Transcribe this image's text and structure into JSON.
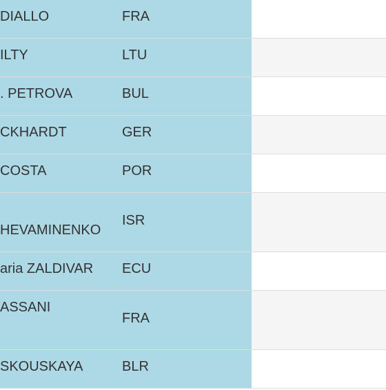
{
  "table": {
    "rows": [
      {
        "name": "DIALLO",
        "country": "FRA"
      },
      {
        "name": "ILTY",
        "country": "LTU"
      },
      {
        "name": ". PETROVA",
        "country": "BUL"
      },
      {
        "name": "CKHARDT",
        "country": "GER"
      },
      {
        "name": "COSTA",
        "country": "POR"
      },
      {
        "name": "HEVAMINENKO",
        "country": "ISR"
      },
      {
        "name": "aria ZALDIVAR",
        "country": "ECU"
      },
      {
        "name": "ASSANI",
        "country": "FRA"
      },
      {
        "name": "SKOUSKAYA",
        "country": "BLR"
      }
    ]
  }
}
